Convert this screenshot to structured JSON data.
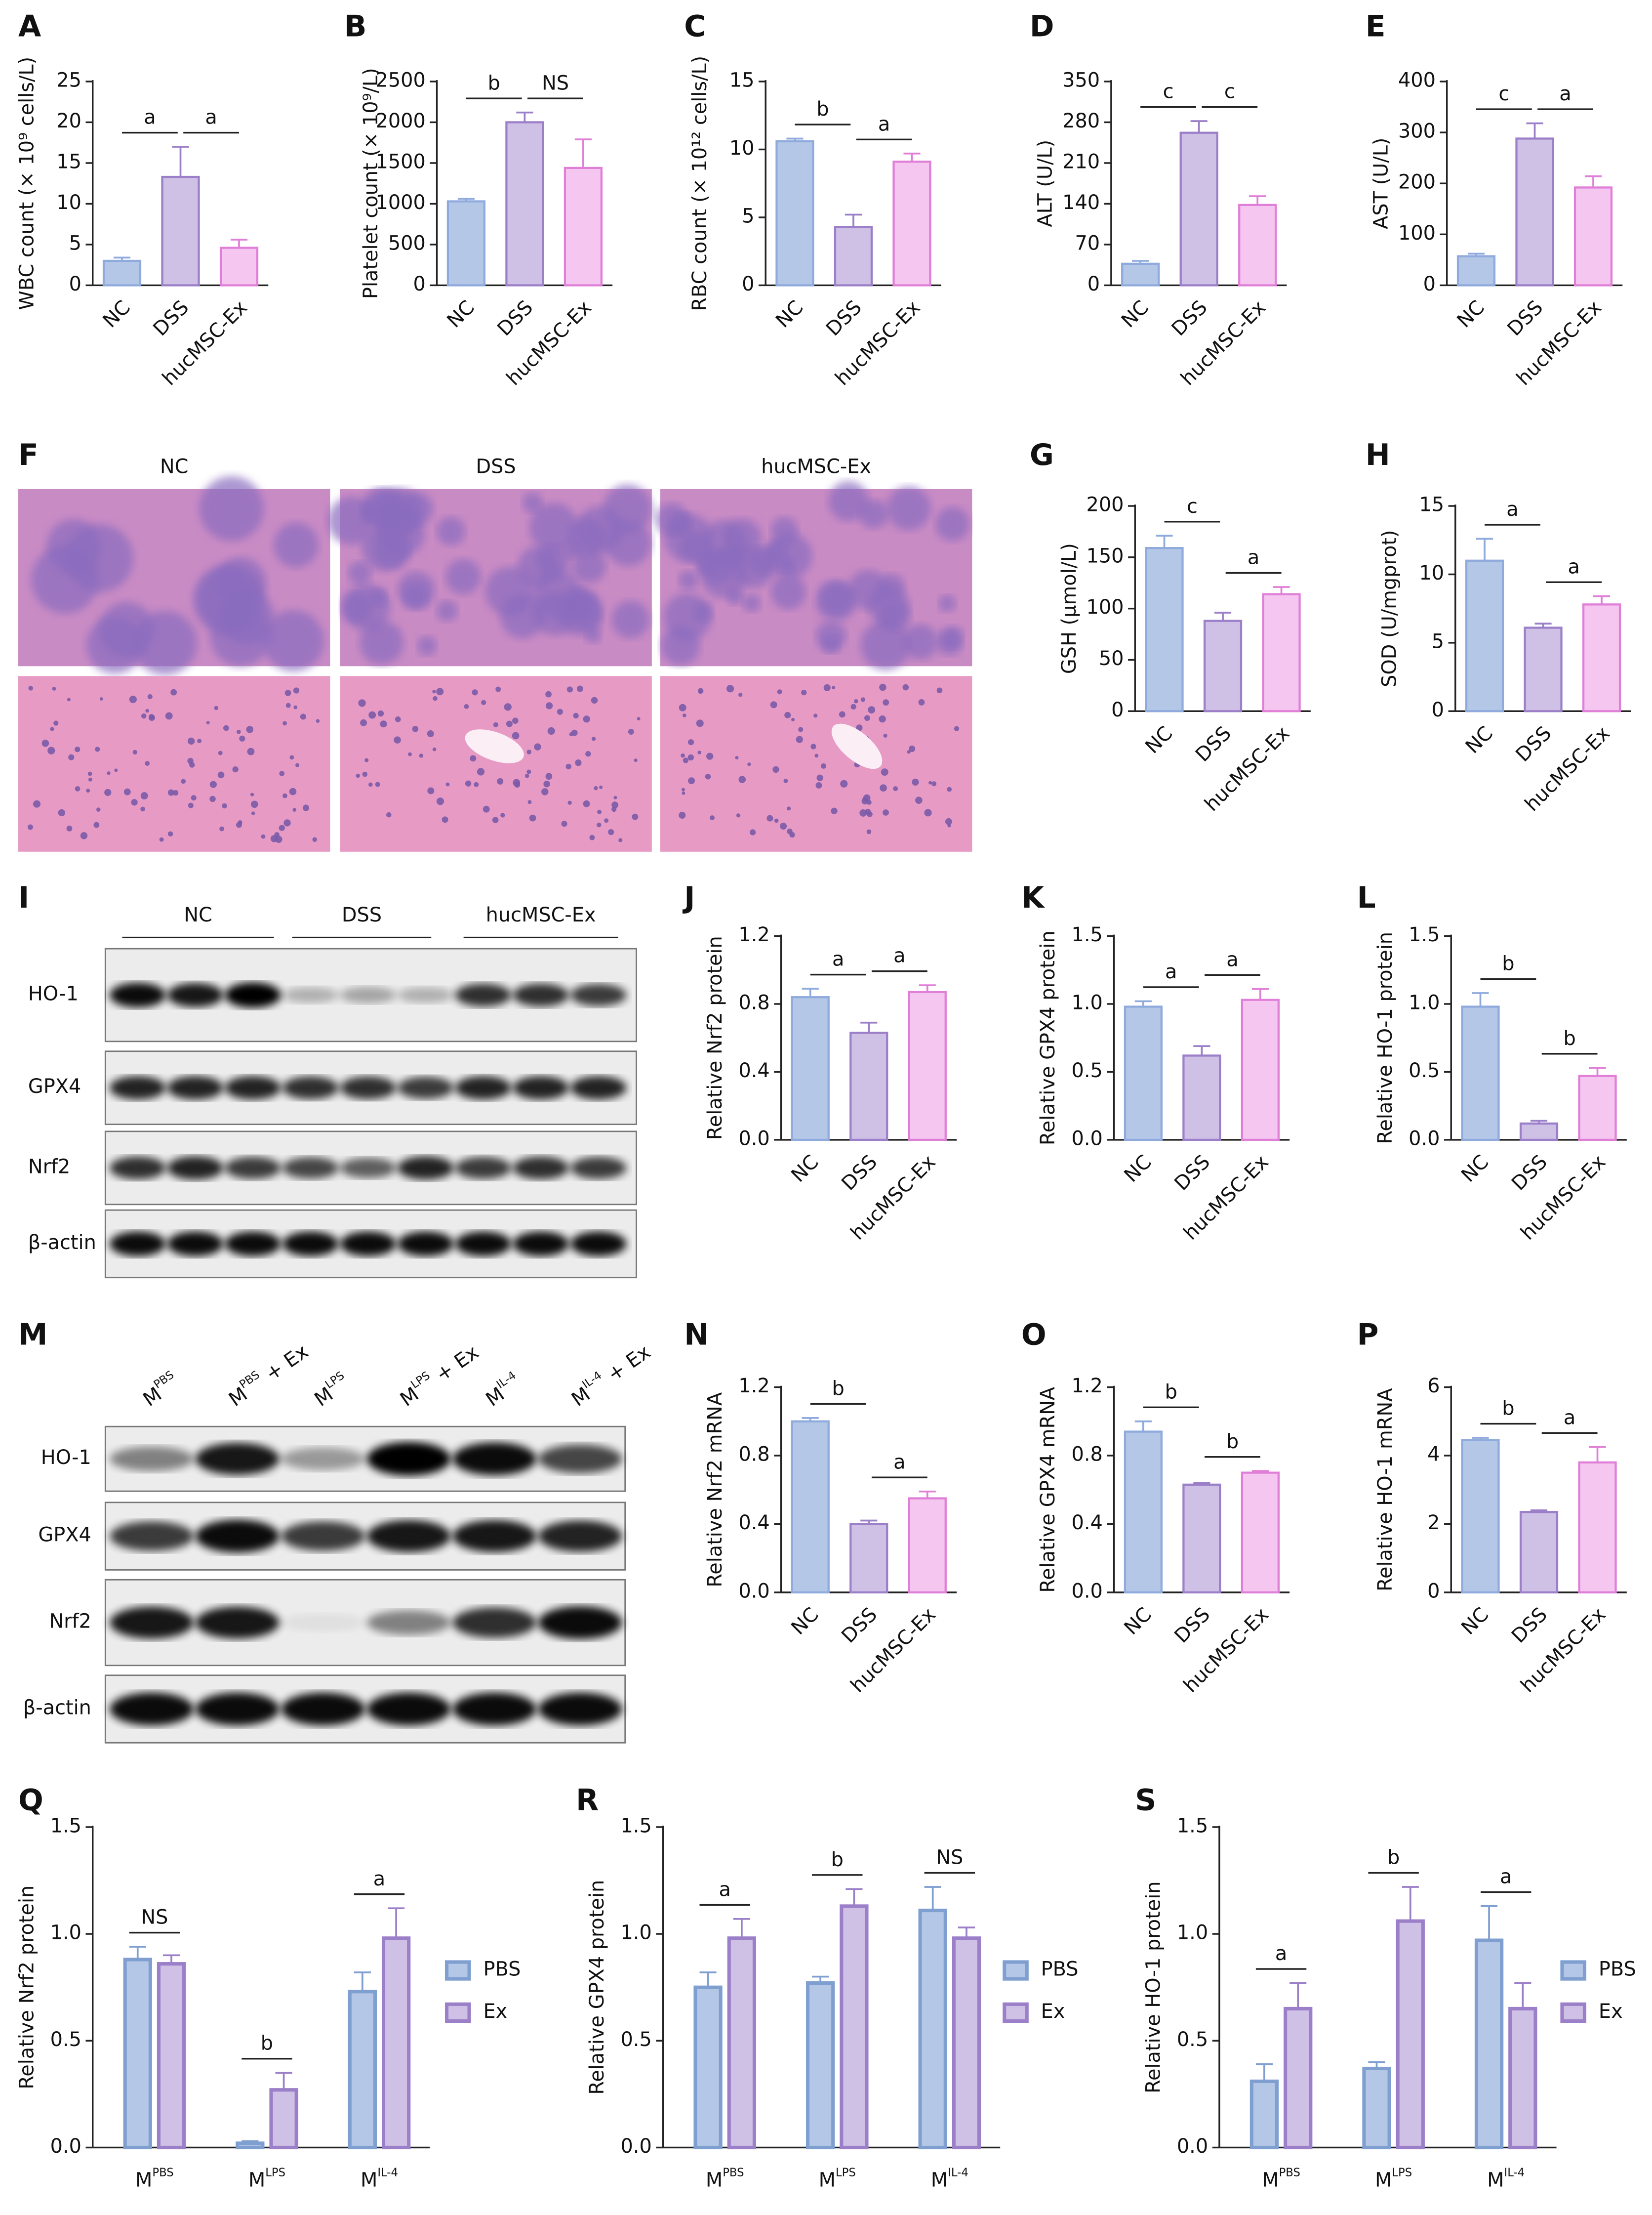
{
  "chart_data": [
    {
      "type": "bar",
      "panel": "A",
      "ylabel": "WBC count (× 10⁹ cells/L)",
      "categories": [
        "NC",
        "DSS",
        "hucMSC-Ex"
      ],
      "values": [
        3,
        13.3,
        4.6
      ],
      "errors": [
        0.4,
        3.7,
        1.0
      ],
      "colors": [
        "#b4c7e7",
        "#cfc0e6",
        "#f5c6f0"
      ],
      "edge_colors": [
        "#8faadc",
        "#9b7fc8",
        "#e07fd8"
      ],
      "ylim": [
        0,
        25
      ],
      "yticks": [
        0,
        5,
        10,
        15,
        20,
        25
      ],
      "annotations": [
        "a",
        "a"
      ]
    },
    {
      "type": "bar",
      "panel": "B",
      "ylabel": "Platelet count (× 10⁹/L)",
      "categories": [
        "NC",
        "DSS",
        "hucMSC-Ex"
      ],
      "values": [
        1030,
        2000,
        1440
      ],
      "errors": [
        30,
        120,
        350
      ],
      "colors": [
        "#b4c7e7",
        "#cfc0e6",
        "#f5c6f0"
      ],
      "edge_colors": [
        "#8faadc",
        "#9b7fc8",
        "#e07fd8"
      ],
      "ylim": [
        0,
        2500
      ],
      "yticks": [
        0,
        500,
        1000,
        1500,
        2000,
        2500
      ],
      "annotations": [
        "b",
        "NS"
      ]
    },
    {
      "type": "bar",
      "panel": "C",
      "ylabel": "RBC count (× 10¹² cells/L)",
      "categories": [
        "NC",
        "DSS",
        "hucMSC-Ex"
      ],
      "values": [
        10.6,
        4.3,
        9.1
      ],
      "errors": [
        0.2,
        0.9,
        0.6
      ],
      "colors": [
        "#b4c7e7",
        "#cfc0e6",
        "#f5c6f0"
      ],
      "edge_colors": [
        "#8faadc",
        "#9b7fc8",
        "#e07fd8"
      ],
      "ylim": [
        0,
        15
      ],
      "yticks": [
        0,
        5,
        10,
        15
      ],
      "annotations": [
        "b",
        "a"
      ]
    },
    {
      "type": "bar",
      "panel": "D",
      "ylabel": "ALT (U/L)",
      "categories": [
        "NC",
        "DSS",
        "hucMSC-Ex"
      ],
      "values": [
        37,
        262,
        138
      ],
      "errors": [
        5,
        20,
        15
      ],
      "colors": [
        "#b4c7e7",
        "#cfc0e6",
        "#f5c6f0"
      ],
      "edge_colors": [
        "#8faadc",
        "#9b7fc8",
        "#e07fd8"
      ],
      "ylim": [
        0,
        350
      ],
      "yticks": [
        0,
        70,
        140,
        210,
        280,
        350
      ],
      "annotations": [
        "c",
        "c"
      ]
    },
    {
      "type": "bar",
      "panel": "E",
      "ylabel": "AST (U/L)",
      "categories": [
        "NC",
        "DSS",
        "hucMSC-Ex"
      ],
      "values": [
        57,
        288,
        192
      ],
      "errors": [
        5,
        30,
        22
      ],
      "colors": [
        "#b4c7e7",
        "#cfc0e6",
        "#f5c6f0"
      ],
      "edge_colors": [
        "#8faadc",
        "#9b7fc8",
        "#e07fd8"
      ],
      "ylim": [
        0,
        400
      ],
      "yticks": [
        0,
        100,
        200,
        300,
        400
      ],
      "annotations": [
        "c",
        "a"
      ]
    },
    {
      "type": "bar",
      "panel": "G",
      "ylabel": "GSH (μmol/L)",
      "categories": [
        "NC",
        "DSS",
        "hucMSC-Ex"
      ],
      "values": [
        159,
        88,
        114
      ],
      "errors": [
        12,
        8,
        7
      ],
      "colors": [
        "#b4c7e7",
        "#cfc0e6",
        "#f5c6f0"
      ],
      "edge_colors": [
        "#8faadc",
        "#9b7fc8",
        "#e07fd8"
      ],
      "ylim": [
        0,
        200
      ],
      "yticks": [
        0,
        50,
        100,
        150,
        200
      ],
      "annotations": [
        "c",
        "a"
      ]
    },
    {
      "type": "bar",
      "panel": "H",
      "ylabel": "SOD (U/mgprot)",
      "categories": [
        "NC",
        "DSS",
        "hucMSC-Ex"
      ],
      "values": [
        11.0,
        6.1,
        7.8
      ],
      "errors": [
        1.6,
        0.3,
        0.6
      ],
      "colors": [
        "#b4c7e7",
        "#cfc0e6",
        "#f5c6f0"
      ],
      "edge_colors": [
        "#8faadc",
        "#9b7fc8",
        "#e07fd8"
      ],
      "ylim": [
        0,
        15
      ],
      "yticks": [
        0,
        5,
        10,
        15
      ],
      "annotations": [
        "a",
        "a"
      ]
    },
    {
      "type": "bar",
      "panel": "J",
      "ylabel": "Relative Nrf2 protein",
      "categories": [
        "NC",
        "DSS",
        "hucMSC-Ex"
      ],
      "values": [
        0.84,
        0.63,
        0.87
      ],
      "errors": [
        0.05,
        0.06,
        0.04
      ],
      "colors": [
        "#b4c7e7",
        "#cfc0e6",
        "#f5c6f0"
      ],
      "edge_colors": [
        "#8faadc",
        "#9b7fc8",
        "#e07fd8"
      ],
      "ylim": [
        0,
        1.2
      ],
      "yticks": [
        {
          "value": 0,
          "label": "0.0"
        },
        0.4,
        0.8,
        1.2
      ],
      "annotations": [
        "a",
        "a"
      ]
    },
    {
      "type": "bar",
      "panel": "K",
      "ylabel": "Relative GPX4 protein",
      "categories": [
        "NC",
        "DSS",
        "hucMSC-Ex"
      ],
      "values": [
        0.98,
        0.62,
        1.03
      ],
      "errors": [
        0.04,
        0.07,
        0.08
      ],
      "colors": [
        "#b4c7e7",
        "#cfc0e6",
        "#f5c6f0"
      ],
      "edge_colors": [
        "#8faadc",
        "#9b7fc8",
        "#e07fd8"
      ],
      "ylim": [
        0,
        1.5
      ],
      "yticks": [
        {
          "value": 0,
          "label": "0.0"
        },
        0.5,
        {
          "value": 1,
          "label": "1.0"
        },
        1.5
      ],
      "annotations": [
        "a",
        "a"
      ]
    },
    {
      "type": "bar",
      "panel": "L",
      "ylabel": "Relative HO-1 protein",
      "categories": [
        "NC",
        "DSS",
        "hucMSC-Ex"
      ],
      "values": [
        0.98,
        0.12,
        0.47
      ],
      "errors": [
        0.1,
        0.02,
        0.06
      ],
      "colors": [
        "#b4c7e7",
        "#cfc0e6",
        "#f5c6f0"
      ],
      "edge_colors": [
        "#8faadc",
        "#9b7fc8",
        "#e07fd8"
      ],
      "ylim": [
        0,
        1.5
      ],
      "yticks": [
        {
          "value": 0,
          "label": "0.0"
        },
        0.5,
        {
          "value": 1,
          "label": "1.0"
        },
        1.5
      ],
      "annotations": [
        "b",
        "b"
      ]
    },
    {
      "type": "bar",
      "panel": "N",
      "ylabel": "Relative Nrf2 mRNA",
      "categories": [
        "NC",
        "DSS",
        "hucMSC-Ex"
      ],
      "values": [
        1.0,
        0.4,
        0.55
      ],
      "errors": [
        0.02,
        0.02,
        0.04
      ],
      "colors": [
        "#b4c7e7",
        "#cfc0e6",
        "#f5c6f0"
      ],
      "edge_colors": [
        "#8faadc",
        "#9b7fc8",
        "#e07fd8"
      ],
      "ylim": [
        0,
        1.2
      ],
      "yticks": [
        {
          "value": 0,
          "label": "0.0"
        },
        0.4,
        0.8,
        1.2
      ],
      "annotations": [
        "b",
        "a"
      ]
    },
    {
      "type": "bar",
      "panel": "O",
      "ylabel": "Relative GPX4 mRNA",
      "categories": [
        "NC",
        "DSS",
        "hucMSC-Ex"
      ],
      "values": [
        0.94,
        0.63,
        0.7
      ],
      "errors": [
        0.06,
        0.01,
        0.01
      ],
      "colors": [
        "#b4c7e7",
        "#cfc0e6",
        "#f5c6f0"
      ],
      "edge_colors": [
        "#8faadc",
        "#9b7fc8",
        "#e07fd8"
      ],
      "ylim": [
        0,
        1.2
      ],
      "yticks": [
        {
          "value": 0,
          "label": "0.0"
        },
        0.4,
        0.8,
        1.2
      ],
      "annotations": [
        "b",
        "b"
      ]
    },
    {
      "type": "bar",
      "panel": "P",
      "ylabel": "Relative HO-1 mRNA",
      "categories": [
        "NC",
        "DSS",
        "hucMSC-Ex"
      ],
      "values": [
        4.45,
        2.35,
        3.8
      ],
      "errors": [
        0.07,
        0.05,
        0.45
      ],
      "colors": [
        "#b4c7e7",
        "#cfc0e6",
        "#f5c6f0"
      ],
      "edge_colors": [
        "#8faadc",
        "#9b7fc8",
        "#e07fd8"
      ],
      "ylim": [
        0,
        6
      ],
      "yticks": [
        0,
        2,
        4,
        6
      ],
      "annotations": [
        "b",
        "a"
      ]
    },
    {
      "type": "grouped_bar",
      "panel": "Q",
      "ylabel": "Relative Nrf2 protein",
      "categories": [
        {
          "base": "M",
          "sup": "PBS"
        },
        {
          "base": "M",
          "sup": "LPS"
        },
        {
          "base": "M",
          "sup": "IL-4"
        }
      ],
      "series": [
        {
          "name": "PBS",
          "color": "#b4c7e7",
          "edge_color": "#7f9fd0",
          "values": [
            0.88,
            0.02,
            0.73
          ],
          "errors": [
            0.06,
            0.01,
            0.09
          ]
        },
        {
          "name": "Ex",
          "color": "#cfc0e6",
          "edge_color": "#9b7fc8",
          "values": [
            0.86,
            0.27,
            0.98
          ],
          "errors": [
            0.04,
            0.08,
            0.14
          ]
        }
      ],
      "ylim": [
        0,
        1.5
      ],
      "yticks": [
        {
          "value": 0,
          "label": "0.0"
        },
        0.5,
        {
          "value": 1,
          "label": "1.0"
        },
        1.5
      ],
      "annotations": [
        "NS",
        "b",
        "a"
      ]
    },
    {
      "type": "grouped_bar",
      "panel": "R",
      "ylabel": "Relative GPX4 protein",
      "categories": [
        {
          "base": "M",
          "sup": "PBS"
        },
        {
          "base": "M",
          "sup": "LPS"
        },
        {
          "base": "M",
          "sup": "IL-4"
        }
      ],
      "series": [
        {
          "name": "PBS",
          "color": "#b4c7e7",
          "edge_color": "#7f9fd0",
          "values": [
            0.75,
            0.77,
            1.11
          ],
          "errors": [
            0.07,
            0.03,
            0.11
          ]
        },
        {
          "name": "Ex",
          "color": "#cfc0e6",
          "edge_color": "#9b7fc8",
          "values": [
            0.98,
            1.13,
            0.98
          ],
          "errors": [
            0.09,
            0.08,
            0.05
          ]
        }
      ],
      "ylim": [
        0,
        1.5
      ],
      "yticks": [
        {
          "value": 0,
          "label": "0.0"
        },
        0.5,
        {
          "value": 1,
          "label": "1.0"
        },
        1.5
      ],
      "annotations": [
        "a",
        "b",
        "NS"
      ]
    },
    {
      "type": "grouped_bar",
      "panel": "S",
      "ylabel": "Relative HO-1 protein",
      "categories": [
        {
          "base": "M",
          "sup": "PBS"
        },
        {
          "base": "M",
          "sup": "LPS"
        },
        {
          "base": "M",
          "sup": "IL-4"
        }
      ],
      "series": [
        {
          "name": "PBS",
          "color": "#b4c7e7",
          "edge_color": "#7f9fd0",
          "values": [
            0.31,
            0.37,
            0.97
          ],
          "errors": [
            0.08,
            0.03,
            0.16
          ]
        },
        {
          "name": "Ex",
          "color": "#cfc0e6",
          "edge_color": "#9b7fc8",
          "values": [
            0.65,
            1.06,
            0.65
          ],
          "errors": [
            0.12,
            0.16,
            0.12
          ]
        }
      ],
      "ylim": [
        0,
        1.5
      ],
      "yticks": [
        {
          "value": 0,
          "label": "0.0"
        },
        0.5,
        {
          "value": 1,
          "label": "1.0"
        },
        1.5
      ],
      "annotations": [
        "a",
        "b",
        "a"
      ]
    }
  ],
  "figure_panels": {
    "F": {
      "panel": "F",
      "columns": [
        "NC",
        "DSS",
        "hucMSC-Ex"
      ]
    },
    "I": {
      "panel": "I",
      "groups": [
        "NC",
        "DSS",
        "hucMSC-Ex"
      ],
      "rows": [
        "HO-1",
        "GPX4",
        "Nrf2",
        "β-actin"
      ]
    },
    "M": {
      "panel": "M",
      "lanes": [
        {
          "base": "M",
          "sup": "PBS"
        },
        {
          "base": "M",
          "sup": "PBS",
          "suffix": " + Ex"
        },
        {
          "base": "M",
          "sup": "LPS"
        },
        {
          "base": "M",
          "sup": "LPS",
          "suffix": " + Ex"
        },
        {
          "base": "M",
          "sup": "IL-4"
        },
        {
          "base": "M",
          "sup": "IL-4",
          "suffix": " + Ex"
        }
      ],
      "rows": [
        "HO-1",
        "GPX4",
        "Nrf2",
        "β-actin"
      ]
    }
  }
}
